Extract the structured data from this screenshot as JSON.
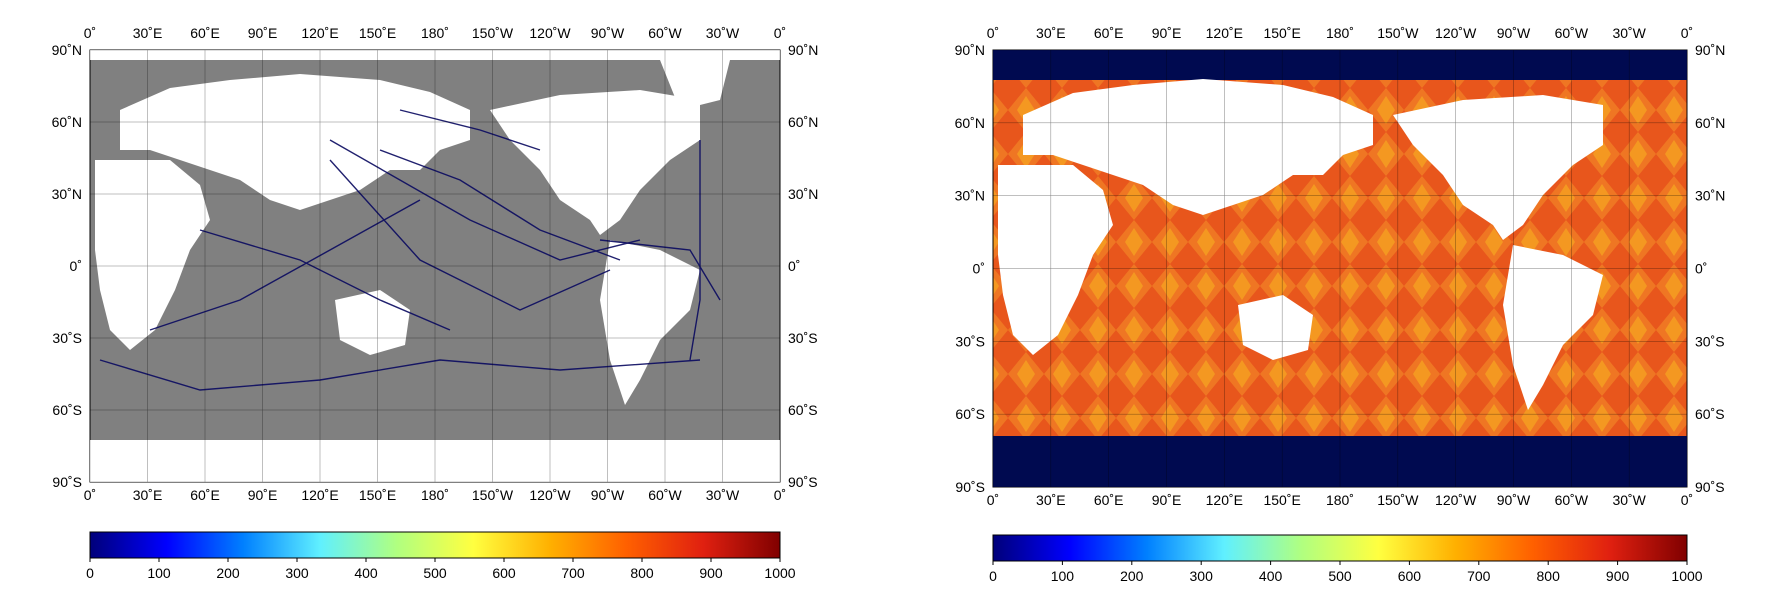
{
  "maps": [
    {
      "id": "left",
      "top_ticks": [
        "0˚",
        "30˚E",
        "60˚E",
        "90˚E",
        "120˚E",
        "150˚E",
        "180˚",
        "150˚W",
        "120˚W",
        "90˚W",
        "60˚W",
        "30˚W",
        "0˚"
      ],
      "bottom_ticks": [
        "0˚",
        "30˚E",
        "60˚E",
        "90˚E",
        "120˚E",
        "150˚E",
        "180˚",
        "150˚W",
        "120˚W",
        "90˚W",
        "60˚W",
        "30˚W",
        "0˚"
      ],
      "lat_ticks": [
        "90˚N",
        "60˚N",
        "30˚N",
        "0˚",
        "30˚S",
        "60˚S",
        "90˚S"
      ],
      "ocean_color": "#808080",
      "land_color": "#ffffff",
      "data_color": "#0a0a60",
      "colorbar_ticks": [
        "0",
        "100",
        "200",
        "300",
        "400",
        "500",
        "600",
        "700",
        "800",
        "900",
        "1000"
      ]
    },
    {
      "id": "right",
      "top_ticks": [
        "0˚",
        "30˚E",
        "60˚E",
        "90˚E",
        "120˚E",
        "150˚E",
        "180˚",
        "150˚W",
        "120˚W",
        "90˚W",
        "60˚W",
        "30˚W",
        "0˚"
      ],
      "bottom_ticks": [
        "0˚",
        "30˚E",
        "60˚E",
        "90˚E",
        "120˚E",
        "150˚E",
        "180˚",
        "150˚W",
        "120˚W",
        "90˚W",
        "60˚W",
        "30˚W",
        "0˚"
      ],
      "lat_ticks": [
        "90˚N",
        "60˚N",
        "30˚N",
        "0˚",
        "30˚S",
        "60˚S",
        "90˚S"
      ],
      "ocean_color": "#e8561c",
      "land_color": "#ffffff",
      "data_color": "#000a50",
      "colorbar_ticks": [
        "0",
        "100",
        "200",
        "300",
        "400",
        "500",
        "600",
        "700",
        "800",
        "900",
        "1000"
      ]
    }
  ],
  "colorbar_stops": [
    "#00007a",
    "#0000ff",
    "#0080ff",
    "#60f0ff",
    "#b0ff80",
    "#ffff40",
    "#ffb000",
    "#ff6000",
    "#e02010",
    "#800000"
  ]
}
